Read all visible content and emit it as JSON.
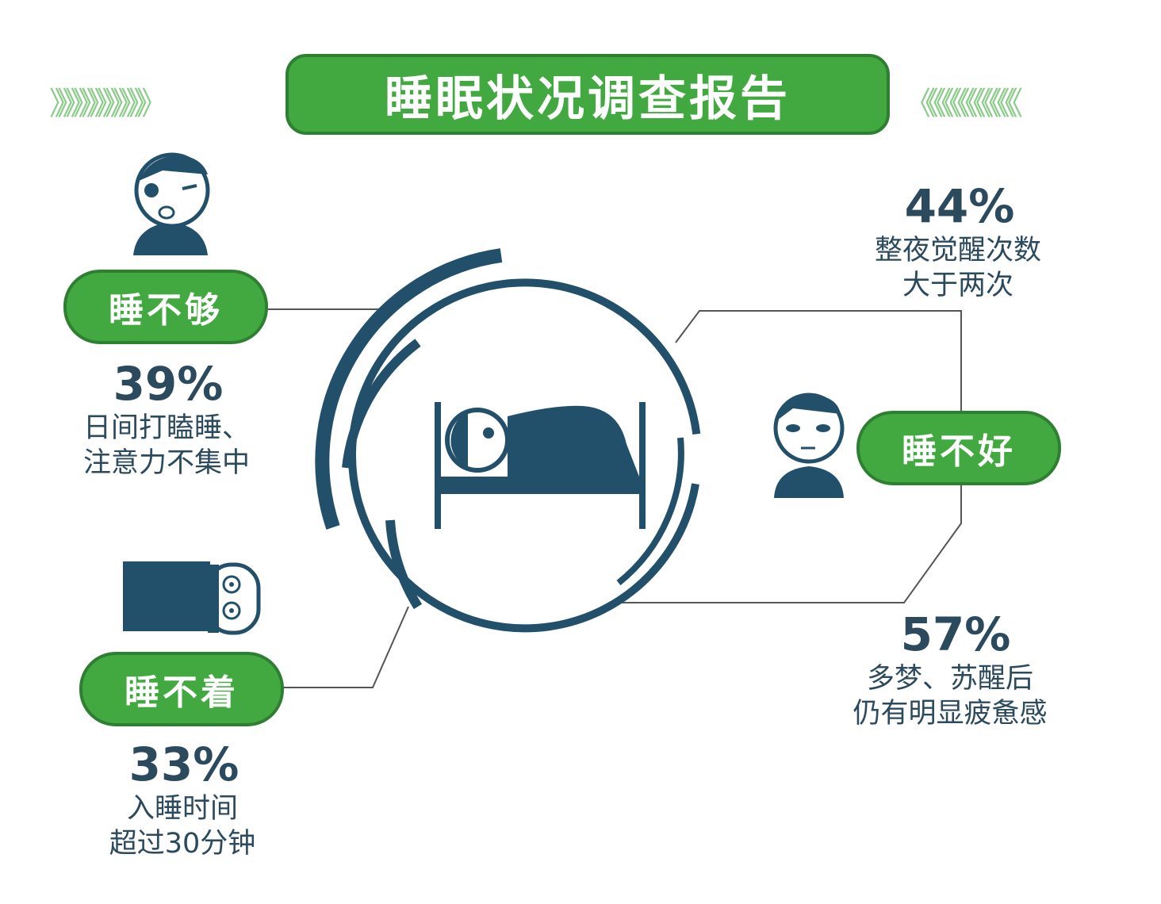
{
  "title": "睡眠状况调查报告",
  "decor": {
    "left_chevrons": "》》》》》》》》》》》》",
    "right_chevrons": "《《《《《《《《《《《《"
  },
  "colors": {
    "green": "#41a940",
    "green_border": "#2f7f33",
    "navy": "#22506a",
    "chevron": "#8ccc8a"
  },
  "categories": [
    {
      "label": "睡不够",
      "percent": "39%",
      "lines": [
        "日间打瞌睡、",
        "注意力不集中"
      ],
      "icon": "drowsy-face-icon"
    },
    {
      "label": "睡不着",
      "percent": "33%",
      "lines": [
        "入睡时间",
        "超过30分钟"
      ],
      "icon": "awake-in-bed-icon"
    },
    {
      "label": "睡不好",
      "percent": "44%",
      "lines": [
        "整夜觉醒次数",
        "大于两次"
      ],
      "percent2": "57%",
      "lines2": [
        "多梦、苏醒后",
        "仍有明显疲惫感"
      ],
      "icon": "tired-face-icon"
    }
  ],
  "center_icon": "person-sleeping-in-bed-icon"
}
